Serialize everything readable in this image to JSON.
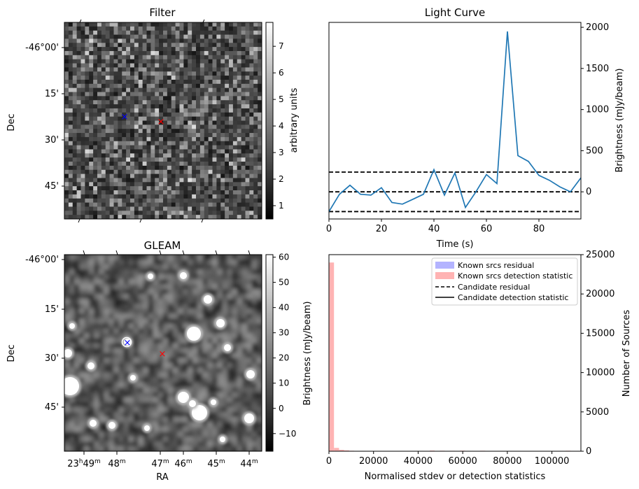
{
  "panels": {
    "filter": {
      "title": "Filter",
      "ylabel": "Dec",
      "colorbar_label": "arbitrary units",
      "colorbar_ticks": [
        "1",
        "2",
        "3",
        "4",
        "5",
        "6",
        "7"
      ],
      "colorbar_range": [
        0.5,
        7.9
      ],
      "dec_ticks": [
        "-46°00'",
        "15'",
        "30'",
        "45'"
      ],
      "markers": [
        {
          "symbol": "×",
          "color": "#0000ff",
          "label": "candidate"
        },
        {
          "symbol": "×",
          "color": "#ff0000",
          "label": "source"
        }
      ]
    },
    "gleam": {
      "title": "GLEAM",
      "ylabel": "Dec",
      "xlabel": "RA",
      "colorbar_label": "Brightness (mJy/beam)",
      "colorbar_ticks": [
        "60",
        "50",
        "40",
        "30",
        "20",
        "10",
        "0",
        "−10"
      ],
      "colorbar_range": [
        -17,
        61
      ],
      "dec_ticks": [
        "-46°00'",
        "15'",
        "30'",
        "45'"
      ],
      "ra_ticks": [
        "23h49m",
        "48m",
        "47m",
        "46m",
        "45m",
        "44m"
      ],
      "ra_tick_parts": [
        {
          "h": "23",
          "hs": "h",
          "m": "49",
          "ms": "m"
        },
        {
          "h": "",
          "hs": "",
          "m": "48",
          "ms": "m"
        },
        {
          "h": "",
          "hs": "",
          "m": "47",
          "ms": "m"
        },
        {
          "h": "",
          "hs": "",
          "m": "46",
          "ms": "m"
        },
        {
          "h": "",
          "hs": "",
          "m": "45",
          "ms": "m"
        },
        {
          "h": "",
          "hs": "",
          "m": "44",
          "ms": "m"
        }
      ]
    }
  },
  "chart_data": [
    {
      "type": "line",
      "title": "Light Curve",
      "xlabel": "Time (s)",
      "ylabel": "Brightness (mJy/beam)",
      "xlim": [
        0,
        96
      ],
      "ylim": [
        -330,
        2060
      ],
      "x_ticks": [
        0,
        20,
        40,
        60,
        80
      ],
      "y_ticks": [
        0,
        500,
        1000,
        1500,
        2000
      ],
      "y_axis_side": "right",
      "series": [
        {
          "color": "#1f77b4",
          "x": [
            0,
            4,
            8,
            12,
            16,
            20,
            24,
            28,
            32,
            36,
            40,
            44,
            48,
            52,
            56,
            60,
            64,
            68,
            72,
            76,
            80,
            84,
            88,
            92,
            96
          ],
          "y": [
            -240,
            -30,
            80,
            -30,
            -40,
            50,
            -130,
            -150,
            -90,
            -30,
            270,
            -40,
            230,
            -190,
            0,
            210,
            100,
            1950,
            440,
            370,
            200,
            140,
            60,
            0,
            170
          ]
        }
      ],
      "hlines": [
        {
          "y": 240,
          "style": "dashed",
          "color": "#000000"
        },
        {
          "y": 0,
          "style": "dashed",
          "color": "#000000"
        },
        {
          "y": -240,
          "style": "dashed",
          "color": "#000000"
        }
      ]
    },
    {
      "type": "bar",
      "title": "",
      "xlabel": "Normalised stdev or detection statistics",
      "ylabel_left": "Brightness (mJy/beam)",
      "ylabel": "Number of Sources",
      "xlim": [
        0,
        113000
      ],
      "ylim": [
        0,
        25000
      ],
      "x_ticks": [
        0,
        20000,
        40000,
        60000,
        80000,
        100000
      ],
      "y_ticks": [
        0,
        5000,
        10000,
        15000,
        20000,
        25000
      ],
      "y_axis_side": "right",
      "bin_width": 2260,
      "series": [
        {
          "name": "Known srcs residual",
          "color": "#b3b3ff",
          "bins": [],
          "values": []
        },
        {
          "name": "Known srcs detection statistic",
          "color": "#ffb3b3",
          "bins": [
            0,
            2260,
            4520,
            6780,
            9040,
            33900,
            45200,
            49720,
            54240,
            58760,
            63280,
            67800,
            106220
          ],
          "values": [
            24000,
            420,
            180,
            110,
            60,
            40,
            80,
            60,
            50,
            70,
            40,
            60,
            60
          ]
        }
      ],
      "legend": {
        "placement": "top-right",
        "entries": [
          {
            "label": "Known srcs residual",
            "kind": "patch",
            "color": "#b3b3ff"
          },
          {
            "label": "Known srcs detection statistic",
            "kind": "patch",
            "color": "#ffb3b3"
          },
          {
            "label": "Candidate residual",
            "kind": "dashed",
            "color": "#000000"
          },
          {
            "label": "Candidate detection statistic",
            "kind": "solid",
            "color": "#000000"
          }
        ]
      }
    }
  ]
}
